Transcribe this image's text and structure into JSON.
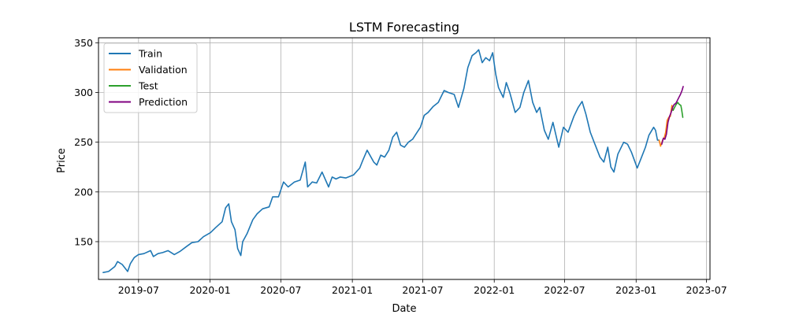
{
  "chart_data": {
    "type": "line",
    "title": "LSTM Forecasting",
    "xlabel": "Date",
    "ylabel": "Price",
    "grid": true,
    "legend_position": "top-left",
    "x_range": [
      "2019-03-20",
      "2023-07-10"
    ],
    "y_range": [
      112,
      355
    ],
    "x_ticks": [
      "2019-07",
      "2020-01",
      "2020-07",
      "2021-01",
      "2021-07",
      "2022-01",
      "2022-07",
      "2023-01",
      "2023-07"
    ],
    "y_ticks": [
      150,
      200,
      250,
      300,
      350
    ],
    "series": [
      {
        "name": "Train",
        "color": "#1f77b4",
        "points": [
          [
            "2019-04-01",
            119
          ],
          [
            "2019-04-15",
            120
          ],
          [
            "2019-05-01",
            125
          ],
          [
            "2019-05-08",
            130
          ],
          [
            "2019-05-20",
            127
          ],
          [
            "2019-06-03",
            120
          ],
          [
            "2019-06-10",
            128
          ],
          [
            "2019-06-20",
            134
          ],
          [
            "2019-07-01",
            137
          ],
          [
            "2019-07-15",
            138
          ],
          [
            "2019-08-01",
            141
          ],
          [
            "2019-08-08",
            135
          ],
          [
            "2019-08-20",
            138
          ],
          [
            "2019-09-01",
            139
          ],
          [
            "2019-09-15",
            141
          ],
          [
            "2019-10-01",
            137
          ],
          [
            "2019-10-15",
            140
          ],
          [
            "2019-11-01",
            145
          ],
          [
            "2019-11-15",
            149
          ],
          [
            "2019-12-01",
            150
          ],
          [
            "2019-12-15",
            155
          ],
          [
            "2020-01-02",
            159
          ],
          [
            "2020-01-15",
            164
          ],
          [
            "2020-02-01",
            170
          ],
          [
            "2020-02-10",
            184
          ],
          [
            "2020-02-18",
            188
          ],
          [
            "2020-02-25",
            170
          ],
          [
            "2020-03-05",
            162
          ],
          [
            "2020-03-12",
            143
          ],
          [
            "2020-03-20",
            136
          ],
          [
            "2020-03-25",
            150
          ],
          [
            "2020-04-05",
            158
          ],
          [
            "2020-04-20",
            172
          ],
          [
            "2020-05-01",
            178
          ],
          [
            "2020-05-15",
            183
          ],
          [
            "2020-06-01",
            185
          ],
          [
            "2020-06-10",
            195
          ],
          [
            "2020-06-25",
            195
          ],
          [
            "2020-07-08",
            210
          ],
          [
            "2020-07-20",
            205
          ],
          [
            "2020-08-05",
            210
          ],
          [
            "2020-08-20",
            212
          ],
          [
            "2020-09-02",
            230
          ],
          [
            "2020-09-08",
            205
          ],
          [
            "2020-09-20",
            210
          ],
          [
            "2020-10-01",
            209
          ],
          [
            "2020-10-15",
            220
          ],
          [
            "2020-11-01",
            205
          ],
          [
            "2020-11-10",
            215
          ],
          [
            "2020-11-20",
            213
          ],
          [
            "2020-12-01",
            215
          ],
          [
            "2020-12-15",
            214
          ],
          [
            "2021-01-04",
            217
          ],
          [
            "2021-01-20",
            224
          ],
          [
            "2021-01-28",
            232
          ],
          [
            "2021-02-08",
            242
          ],
          [
            "2021-02-25",
            230
          ],
          [
            "2021-03-05",
            227
          ],
          [
            "2021-03-15",
            237
          ],
          [
            "2021-03-25",
            235
          ],
          [
            "2021-04-05",
            242
          ],
          [
            "2021-04-15",
            255
          ],
          [
            "2021-04-25",
            260
          ],
          [
            "2021-05-05",
            247
          ],
          [
            "2021-05-15",
            245
          ],
          [
            "2021-05-25",
            250
          ],
          [
            "2021-06-05",
            253
          ],
          [
            "2021-06-15",
            259
          ],
          [
            "2021-06-25",
            265
          ],
          [
            "2021-07-05",
            277
          ],
          [
            "2021-07-15",
            280
          ],
          [
            "2021-07-28",
            286
          ],
          [
            "2021-08-10",
            290
          ],
          [
            "2021-08-25",
            302
          ],
          [
            "2021-09-05",
            300
          ],
          [
            "2021-09-20",
            298
          ],
          [
            "2021-10-01",
            285
          ],
          [
            "2021-10-15",
            304
          ],
          [
            "2021-10-25",
            325
          ],
          [
            "2021-11-05",
            337
          ],
          [
            "2021-11-15",
            340
          ],
          [
            "2021-11-22",
            343
          ],
          [
            "2021-12-01",
            330
          ],
          [
            "2021-12-10",
            335
          ],
          [
            "2021-12-20",
            332
          ],
          [
            "2021-12-28",
            340
          ],
          [
            "2022-01-05",
            318
          ],
          [
            "2022-01-12",
            305
          ],
          [
            "2022-01-24",
            295
          ],
          [
            "2022-02-01",
            310
          ],
          [
            "2022-02-10",
            300
          ],
          [
            "2022-02-24",
            280
          ],
          [
            "2022-03-08",
            285
          ],
          [
            "2022-03-18",
            300
          ],
          [
            "2022-03-30",
            312
          ],
          [
            "2022-04-10",
            290
          ],
          [
            "2022-04-20",
            280
          ],
          [
            "2022-04-28",
            285
          ],
          [
            "2022-05-10",
            262
          ],
          [
            "2022-05-20",
            253
          ],
          [
            "2022-06-01",
            270
          ],
          [
            "2022-06-16",
            245
          ],
          [
            "2022-06-28",
            265
          ],
          [
            "2022-07-10",
            260
          ],
          [
            "2022-07-25",
            276
          ],
          [
            "2022-08-05",
            285
          ],
          [
            "2022-08-15",
            291
          ],
          [
            "2022-08-25",
            278
          ],
          [
            "2022-09-05",
            260
          ],
          [
            "2022-09-15",
            250
          ],
          [
            "2022-09-30",
            235
          ],
          [
            "2022-10-10",
            230
          ],
          [
            "2022-10-20",
            245
          ],
          [
            "2022-10-28",
            225
          ],
          [
            "2022-11-05",
            220
          ],
          [
            "2022-11-15",
            238
          ],
          [
            "2022-11-30",
            250
          ],
          [
            "2022-12-10",
            248
          ],
          [
            "2022-12-20",
            240
          ],
          [
            "2023-01-04",
            224
          ],
          [
            "2023-01-15",
            235
          ],
          [
            "2023-01-25",
            245
          ],
          [
            "2023-02-03",
            257
          ],
          [
            "2023-02-15",
            265
          ],
          [
            "2023-02-20",
            262
          ],
          [
            "2023-02-25",
            252
          ],
          [
            "2023-03-01",
            252
          ]
        ]
      },
      {
        "name": "Validation",
        "color": "#ff7f0e",
        "points": [
          [
            "2023-03-01",
            252
          ],
          [
            "2023-03-05",
            246
          ],
          [
            "2023-03-10",
            252
          ],
          [
            "2023-03-14",
            254
          ],
          [
            "2023-03-18",
            260
          ],
          [
            "2023-03-22",
            272
          ],
          [
            "2023-03-26",
            275
          ],
          [
            "2023-03-30",
            276
          ],
          [
            "2023-04-03",
            287
          ],
          [
            "2023-04-06",
            282
          ]
        ]
      },
      {
        "name": "Test",
        "color": "#2ca02c",
        "points": [
          [
            "2023-04-06",
            282
          ],
          [
            "2023-04-10",
            285
          ],
          [
            "2023-04-14",
            288
          ],
          [
            "2023-04-18",
            290
          ],
          [
            "2023-04-22",
            288
          ],
          [
            "2023-04-26",
            287
          ],
          [
            "2023-04-28",
            283
          ],
          [
            "2023-05-01",
            275
          ]
        ]
      },
      {
        "name": "Prediction",
        "color": "#800080",
        "points": [
          [
            "2023-03-08",
            248
          ],
          [
            "2023-03-12",
            254
          ],
          [
            "2023-03-16",
            253
          ],
          [
            "2023-03-20",
            258
          ],
          [
            "2023-03-24",
            270
          ],
          [
            "2023-03-28",
            276
          ],
          [
            "2023-04-01",
            280
          ],
          [
            "2023-04-05",
            285
          ],
          [
            "2023-04-09",
            288
          ],
          [
            "2023-04-13",
            289
          ],
          [
            "2023-04-17",
            292
          ],
          [
            "2023-04-21",
            295
          ],
          [
            "2023-04-25",
            298
          ],
          [
            "2023-04-29",
            302
          ],
          [
            "2023-05-02",
            306
          ]
        ]
      }
    ]
  }
}
